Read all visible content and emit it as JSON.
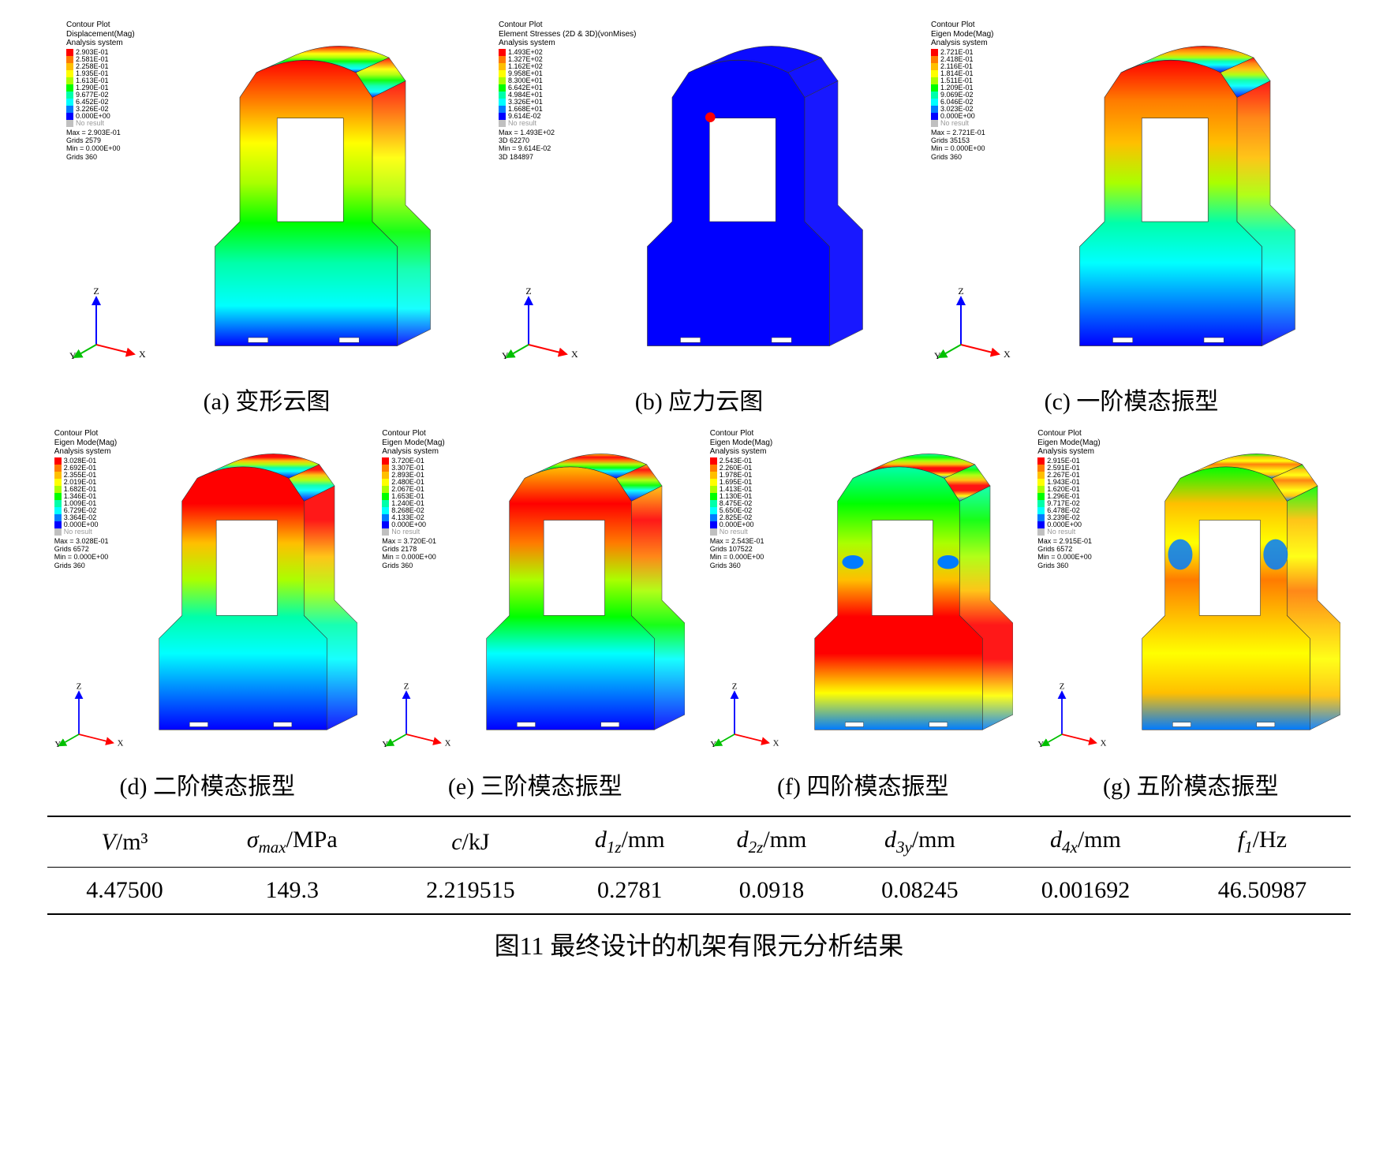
{
  "colormap": [
    "#ff0000",
    "#ff7b00",
    "#ffbf00",
    "#ffff00",
    "#aaff00",
    "#00ff00",
    "#00ffaa",
    "#00ffff",
    "#007bff",
    "#0000ff"
  ],
  "noresult_color": "#c0c0c0",
  "panels": [
    {
      "id": "a",
      "caption": "(a) 变形云图",
      "title1": "Contour Plot",
      "title2": "Displacement(Mag)",
      "title3": "Analysis system",
      "values": [
        "2.903E-01",
        "2.581E-01",
        "2.258E-01",
        "1.935E-01",
        "1.613E-01",
        "1.290E-01",
        "9.677E-02",
        "6.452E-02",
        "3.226E-02",
        "0.000E+00"
      ],
      "meta": [
        "Max = 2.903E-01",
        "Grids 2579",
        "Min = 0.000E+00",
        "Grids 360"
      ],
      "style": "deform"
    },
    {
      "id": "b",
      "caption": "(b) 应力云图",
      "title1": "Contour Plot",
      "title2": "Element Stresses (2D & 3D)(vonMises)",
      "title3": "Analysis system",
      "values": [
        "1.493E+02",
        "1.327E+02",
        "1.162E+02",
        "9.958E+01",
        "8.300E+01",
        "6.642E+01",
        "4.984E+01",
        "3.326E+01",
        "1.668E+01",
        "9.614E-02"
      ],
      "meta": [
        "Max = 1.493E+02",
        "3D 62270",
        "Min = 9.614E-02",
        "3D 184897"
      ],
      "style": "stress"
    },
    {
      "id": "c",
      "caption": "(c) 一阶模态振型",
      "title1": "Contour Plot",
      "title2": "Eigen Mode(Mag)",
      "title3": "Analysis system",
      "values": [
        "2.721E-01",
        "2.418E-01",
        "2.116E-01",
        "1.814E-01",
        "1.511E-01",
        "1.209E-01",
        "9.069E-02",
        "6.046E-02",
        "3.023E-02",
        "0.000E+00"
      ],
      "meta": [
        "Max = 2.721E-01",
        "Grids 35153",
        "Min = 0.000E+00",
        "Grids 360"
      ],
      "style": "mode1"
    },
    {
      "id": "d",
      "caption": "(d) 二阶模态振型",
      "title1": "Contour Plot",
      "title2": "Eigen Mode(Mag)",
      "title3": "Analysis system",
      "values": [
        "3.028E-01",
        "2.692E-01",
        "2.355E-01",
        "2.019E-01",
        "1.682E-01",
        "1.346E-01",
        "1.009E-01",
        "6.729E-02",
        "3.364E-02",
        "0.000E+00"
      ],
      "meta": [
        "Max = 3.028E-01",
        "Grids 6572",
        "Min = 0.000E+00",
        "Grids 360"
      ],
      "style": "mode2"
    },
    {
      "id": "e",
      "caption": "(e) 三阶模态振型",
      "title1": "Contour Plot",
      "title2": "Eigen Mode(Mag)",
      "title3": "Analysis system",
      "values": [
        "3.720E-01",
        "3.307E-01",
        "2.893E-01",
        "2.480E-01",
        "2.067E-01",
        "1.653E-01",
        "1.240E-01",
        "8.268E-02",
        "4.133E-02",
        "0.000E+00"
      ],
      "meta": [
        "Max = 3.720E-01",
        "Grids 2178",
        "Min = 0.000E+00",
        "Grids 360"
      ],
      "style": "mode3"
    },
    {
      "id": "f",
      "caption": "(f) 四阶模态振型",
      "title1": "Contour Plot",
      "title2": "Eigen Mode(Mag)",
      "title3": "Analysis system",
      "values": [
        "2.543E-01",
        "2.260E-01",
        "1.978E-01",
        "1.695E-01",
        "1.413E-01",
        "1.130E-01",
        "8.475E-02",
        "5.650E-02",
        "2.825E-02",
        "0.000E+00"
      ],
      "meta": [
        "Max = 2.543E-01",
        "Grids 107522",
        "Min = 0.000E+00",
        "Grids 360"
      ],
      "style": "mode4"
    },
    {
      "id": "g",
      "caption": "(g) 五阶模态振型",
      "title1": "Contour Plot",
      "title2": "Eigen Mode(Mag)",
      "title3": "Analysis system",
      "values": [
        "2.915E-01",
        "2.591E-01",
        "2.267E-01",
        "1.943E-01",
        "1.620E-01",
        "1.296E-01",
        "9.717E-02",
        "6.478E-02",
        "3.239E-02",
        "0.000E+00"
      ],
      "meta": [
        "Max = 2.915E-01",
        "Grids 6572",
        "Min = 0.000E+00",
        "Grids 360"
      ],
      "style": "mode5"
    }
  ],
  "noresult_label": "No result",
  "axis": {
    "x": "X",
    "y": "Y",
    "z": "Z",
    "x_color": "#ff0000",
    "y_color": "#00c000",
    "z_color": "#0000ff"
  },
  "table": {
    "columns": [
      {
        "sym": "V",
        "unit": "/m³"
      },
      {
        "sym": "σ",
        "sub": "max",
        "unit": "/MPa"
      },
      {
        "sym": "c",
        "unit": "/kJ"
      },
      {
        "sym": "d",
        "sub": "1z",
        "unit": "/mm"
      },
      {
        "sym": "d",
        "sub": "2z",
        "unit": "/mm"
      },
      {
        "sym": "d",
        "sub": "3y",
        "unit": "/mm"
      },
      {
        "sym": "d",
        "sub": "4x",
        "unit": "/mm"
      },
      {
        "sym": "f",
        "sub": "1",
        "unit": "/Hz"
      }
    ],
    "row": [
      "4.47500",
      "149.3",
      "2.219515",
      "0.2781",
      "0.0918",
      "0.08245",
      "0.001692",
      "46.50987"
    ]
  },
  "figure_caption": "图11 最终设计的机架有限元分析结果"
}
